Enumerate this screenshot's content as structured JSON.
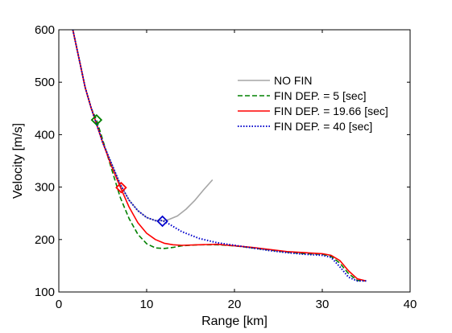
{
  "chart_data": {
    "type": "line",
    "xlabel": "Range [km]",
    "ylabel": "Velocity [m/s]",
    "xlim": [
      0,
      40
    ],
    "ylim": [
      100,
      600
    ],
    "xticks": [
      0,
      10,
      20,
      30,
      40
    ],
    "yticks": [
      100,
      200,
      300,
      400,
      500,
      600
    ],
    "grid": false,
    "legend_position": "top-right",
    "series": [
      {
        "name": "NO FIN",
        "color": "#a6a6a6",
        "style": "solid",
        "points": [
          [
            1.6,
            600
          ],
          [
            2.3,
            545
          ],
          [
            3.0,
            490
          ],
          [
            3.7,
            450
          ],
          [
            4.3,
            420
          ],
          [
            5.0,
            385
          ],
          [
            6.0,
            345
          ],
          [
            7.0,
            305
          ],
          [
            8.0,
            275
          ],
          [
            9.0,
            255
          ],
          [
            10.0,
            242
          ],
          [
            11.0,
            236
          ],
          [
            12.0,
            236
          ],
          [
            12.5,
            238
          ],
          [
            13.5,
            245
          ],
          [
            14.5,
            258
          ],
          [
            15.5,
            275
          ],
          [
            16.5,
            295
          ],
          [
            17.5,
            314
          ]
        ],
        "marker": null
      },
      {
        "name": "FIN DEP. = 5 [sec]",
        "color": "#008000",
        "style": "dashed",
        "points": [
          [
            1.6,
            600
          ],
          [
            2.3,
            545
          ],
          [
            3.0,
            490
          ],
          [
            3.7,
            450
          ],
          [
            4.3,
            428
          ],
          [
            5.0,
            390
          ],
          [
            6.0,
            335
          ],
          [
            7.0,
            280
          ],
          [
            8.0,
            240
          ],
          [
            9.0,
            210
          ],
          [
            10.0,
            192
          ],
          [
            11.0,
            184
          ],
          [
            12.0,
            183
          ],
          [
            13.0,
            185
          ],
          [
            14.0,
            188
          ],
          [
            16.0,
            190
          ],
          [
            18.0,
            190
          ],
          [
            20.0,
            188
          ],
          [
            22.0,
            184
          ],
          [
            24.0,
            180
          ],
          [
            26.0,
            176
          ],
          [
            28.0,
            173
          ],
          [
            30.0,
            172
          ],
          [
            31.0,
            168
          ],
          [
            32.0,
            155
          ],
          [
            33.0,
            135
          ],
          [
            34.0,
            122
          ],
          [
            35.0,
            121
          ]
        ],
        "marker": {
          "x": 4.3,
          "y": 428
        }
      },
      {
        "name": "FIN DEP. = 19.66 [sec]",
        "color": "#ff0000",
        "style": "solid",
        "points": [
          [
            1.6,
            600
          ],
          [
            2.3,
            545
          ],
          [
            3.0,
            490
          ],
          [
            3.7,
            450
          ],
          [
            4.3,
            420
          ],
          [
            5.0,
            385
          ],
          [
            6.0,
            340
          ],
          [
            7.0,
            300
          ],
          [
            8.0,
            262
          ],
          [
            9.0,
            232
          ],
          [
            10.0,
            212
          ],
          [
            11.0,
            200
          ],
          [
            12.0,
            193
          ],
          [
            13.0,
            190
          ],
          [
            14.0,
            189
          ],
          [
            16.0,
            190
          ],
          [
            18.0,
            191
          ],
          [
            20.0,
            188
          ],
          [
            22.0,
            185
          ],
          [
            24.0,
            181
          ],
          [
            26.0,
            177
          ],
          [
            28.0,
            175
          ],
          [
            30.0,
            173
          ],
          [
            31.0,
            170
          ],
          [
            32.0,
            160
          ],
          [
            33.0,
            140
          ],
          [
            34.0,
            125
          ],
          [
            35.0,
            121
          ]
        ],
        "marker": {
          "x": 7.1,
          "y": 299
        }
      },
      {
        "name": "FIN DEP. = 40 [sec]",
        "color": "#0000cc",
        "style": "dotted",
        "points": [
          [
            1.6,
            600
          ],
          [
            2.3,
            545
          ],
          [
            3.0,
            490
          ],
          [
            3.7,
            450
          ],
          [
            4.3,
            420
          ],
          [
            5.0,
            385
          ],
          [
            6.0,
            345
          ],
          [
            7.0,
            305
          ],
          [
            8.0,
            275
          ],
          [
            9.0,
            255
          ],
          [
            10.0,
            242
          ],
          [
            11.0,
            236
          ],
          [
            11.8,
            236
          ],
          [
            12.5,
            230
          ],
          [
            14.0,
            215
          ],
          [
            16.0,
            202
          ],
          [
            18.0,
            194
          ],
          [
            20.0,
            189
          ],
          [
            22.0,
            184
          ],
          [
            24.0,
            179
          ],
          [
            26.0,
            175
          ],
          [
            28.0,
            172
          ],
          [
            30.0,
            170
          ],
          [
            31.0,
            166
          ],
          [
            32.0,
            148
          ],
          [
            33.0,
            128
          ],
          [
            34.0,
            121
          ],
          [
            35.0,
            121
          ]
        ],
        "marker": {
          "x": 11.8,
          "y": 235
        }
      }
    ]
  }
}
